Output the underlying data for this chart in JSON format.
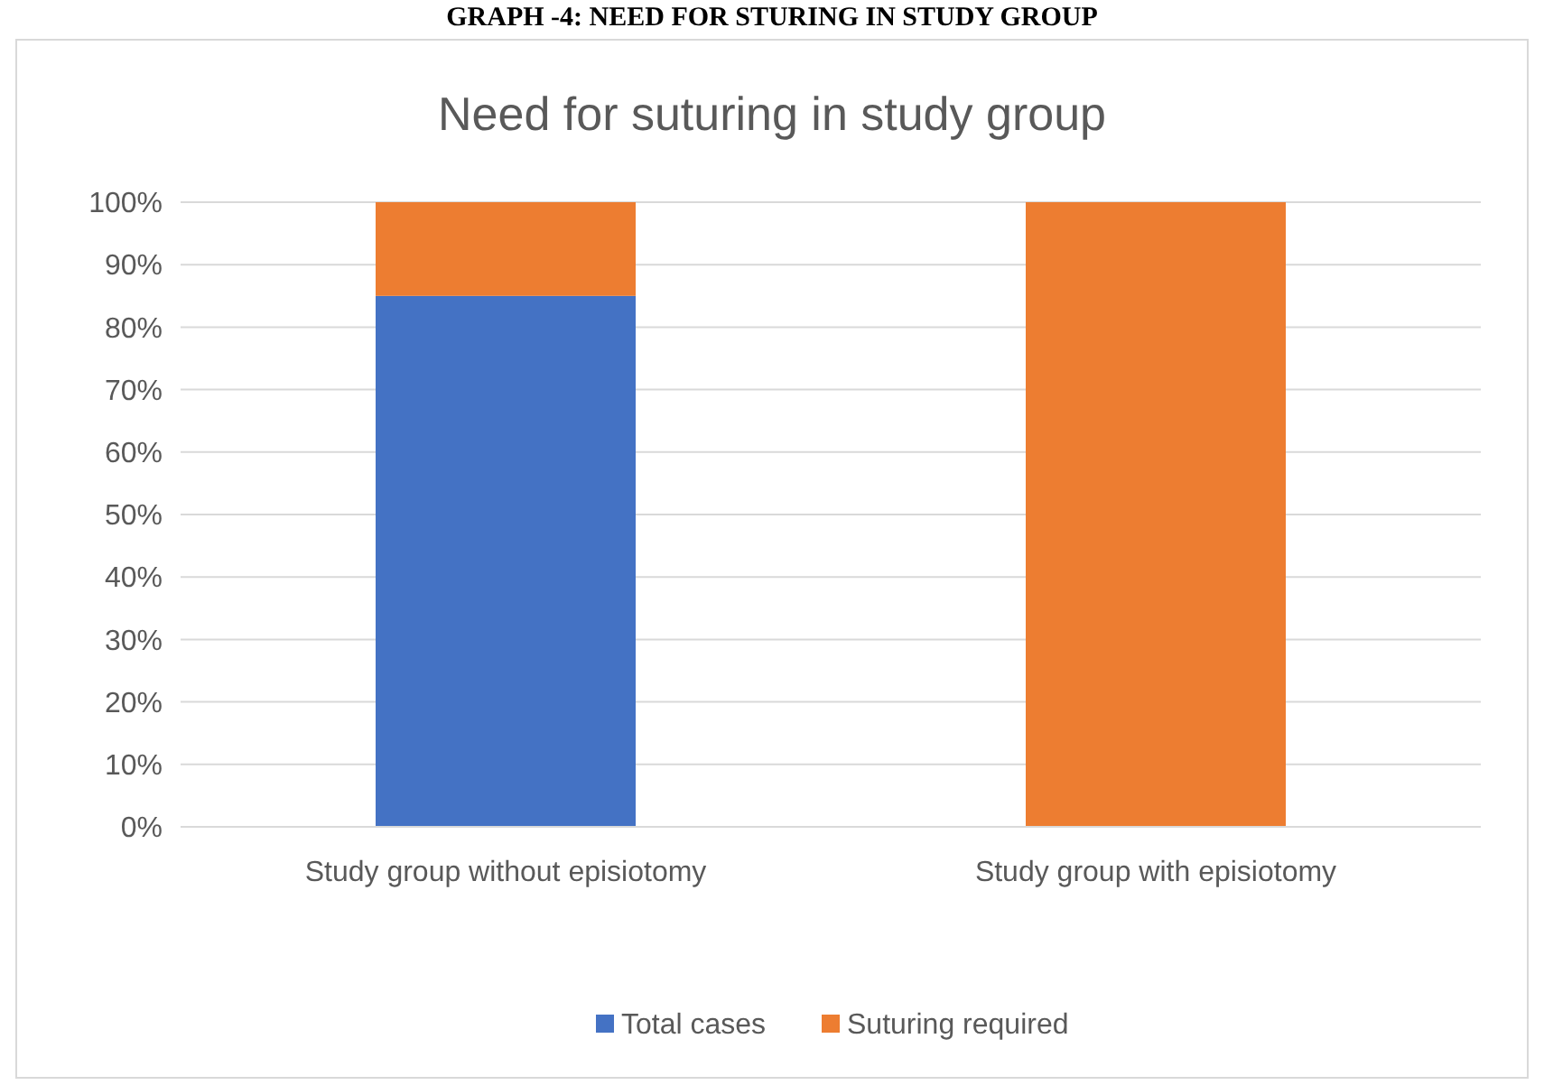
{
  "chart_data": {
    "type": "bar",
    "title": "Need for suturing in study group",
    "annotations": [
      "GRAPH -4: NEED FOR STURING IN STUDY GROUP"
    ],
    "categories": [
      "Study group without episiotomy",
      "Study group with episiotomy"
    ],
    "series": [
      {
        "name": "Total cases",
        "color": "#4472c4",
        "values": [
          85,
          0
        ]
      },
      {
        "name": "Suturing required",
        "color": "#ed7d31",
        "values": [
          15,
          100
        ]
      }
    ],
    "stacked": true,
    "ylim": [
      0,
      100
    ],
    "yticks": [
      {
        "value": 0,
        "label": "0%"
      },
      {
        "value": 10,
        "label": "10%"
      },
      {
        "value": 20,
        "label": "20%"
      },
      {
        "value": 30,
        "label": "30%"
      },
      {
        "value": 40,
        "label": "40%"
      },
      {
        "value": 50,
        "label": "50%"
      },
      {
        "value": 60,
        "label": "60%"
      },
      {
        "value": 70,
        "label": "70%"
      },
      {
        "value": 80,
        "label": "80%"
      },
      {
        "value": 90,
        "label": "90%"
      },
      {
        "value": 100,
        "label": "100%"
      }
    ],
    "grid": "y",
    "legend": "bottom"
  }
}
